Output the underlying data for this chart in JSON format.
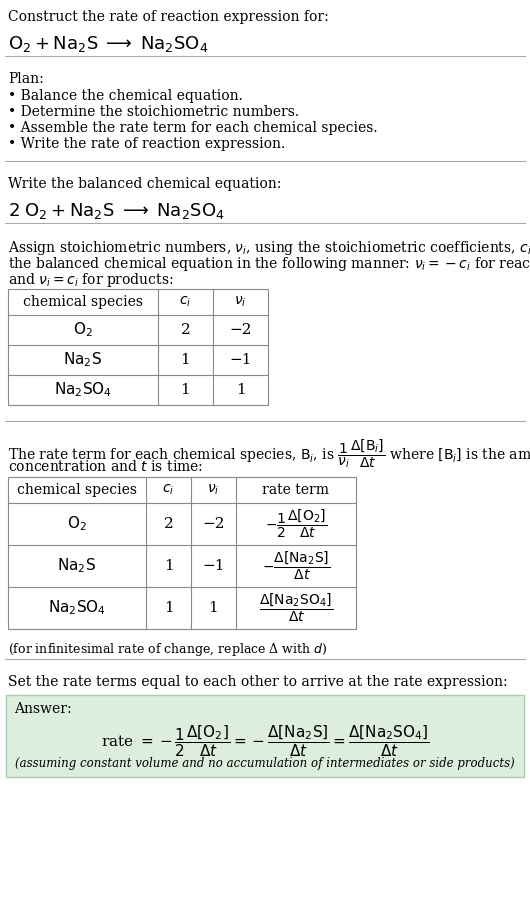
{
  "bg_color": "#ffffff",
  "text_color": "#000000",
  "title_line1": "Construct the rate of reaction expression for:",
  "title_eq": "$\\mathrm{O_2 + Na_2S \\;\\longrightarrow\\; Na_2SO_4}$",
  "plan_title": "Plan:",
  "plan_items": [
    "• Balance the chemical equation.",
    "• Determine the stoichiometric numbers.",
    "• Assemble the rate term for each chemical species.",
    "• Write the rate of reaction expression."
  ],
  "balanced_label": "Write the balanced chemical equation:",
  "balanced_eq": "$\\mathrm{2\\;O_2 + Na_2S \\;\\longrightarrow\\; Na_2SO_4}$",
  "assign_text1": "Assign stoichiometric numbers, $\\nu_i$, using the stoichiometric coefficients, $c_i$, from",
  "assign_text2": "the balanced chemical equation in the following manner: $\\nu_i = -c_i$ for reactants",
  "assign_text3": "and $\\nu_i = c_i$ for products:",
  "table1_headers": [
    "chemical species",
    "$c_i$",
    "$\\nu_i$"
  ],
  "table1_rows": [
    [
      "$\\mathrm{O_2}$",
      "2",
      "−2"
    ],
    [
      "$\\mathrm{Na_2S}$",
      "1",
      "−1"
    ],
    [
      "$\\mathrm{Na_2SO_4}$",
      "1",
      "1"
    ]
  ],
  "rate_text1": "The rate term for each chemical species, $\\mathrm{B}_i$, is $\\dfrac{1}{\\nu_i}\\dfrac{\\Delta[\\mathrm{B}_i]}{\\Delta t}$ where $[\\mathrm{B}_i]$ is the amount",
  "rate_text2": "concentration and $t$ is time:",
  "table2_headers": [
    "chemical species",
    "$c_i$",
    "$\\nu_i$",
    "rate term"
  ],
  "table2_rows": [
    [
      "$\\mathrm{O_2}$",
      "2",
      "−2",
      "$-\\dfrac{1}{2}\\dfrac{\\Delta[\\mathrm{O_2}]}{\\Delta t}$"
    ],
    [
      "$\\mathrm{Na_2S}$",
      "1",
      "−1",
      "$-\\dfrac{\\Delta[\\mathrm{Na_2S}]}{\\Delta t}$"
    ],
    [
      "$\\mathrm{Na_2SO_4}$",
      "1",
      "1",
      "$\\dfrac{\\Delta[\\mathrm{Na_2SO_4}]}{\\Delta t}$"
    ]
  ],
  "infinitesimal_note": "(for infinitesimal rate of change, replace Δ with $d$)",
  "set_text": "Set the rate terms equal to each other to arrive at the rate expression:",
  "answer_label": "Answer:",
  "answer_rate": "rate $= -\\dfrac{1}{2}\\dfrac{\\Delta[\\mathrm{O_2}]}{\\Delta t} = -\\dfrac{\\Delta[\\mathrm{Na_2S}]}{\\Delta t} = \\dfrac{\\Delta[\\mathrm{Na_2SO_4}]}{\\Delta t}$",
  "answer_note": "(assuming constant volume and no accumulation of intermediates or side products)",
  "answer_box_color": "#deeede",
  "separator_color": "#aaaaaa",
  "font_family": "DejaVu Serif"
}
